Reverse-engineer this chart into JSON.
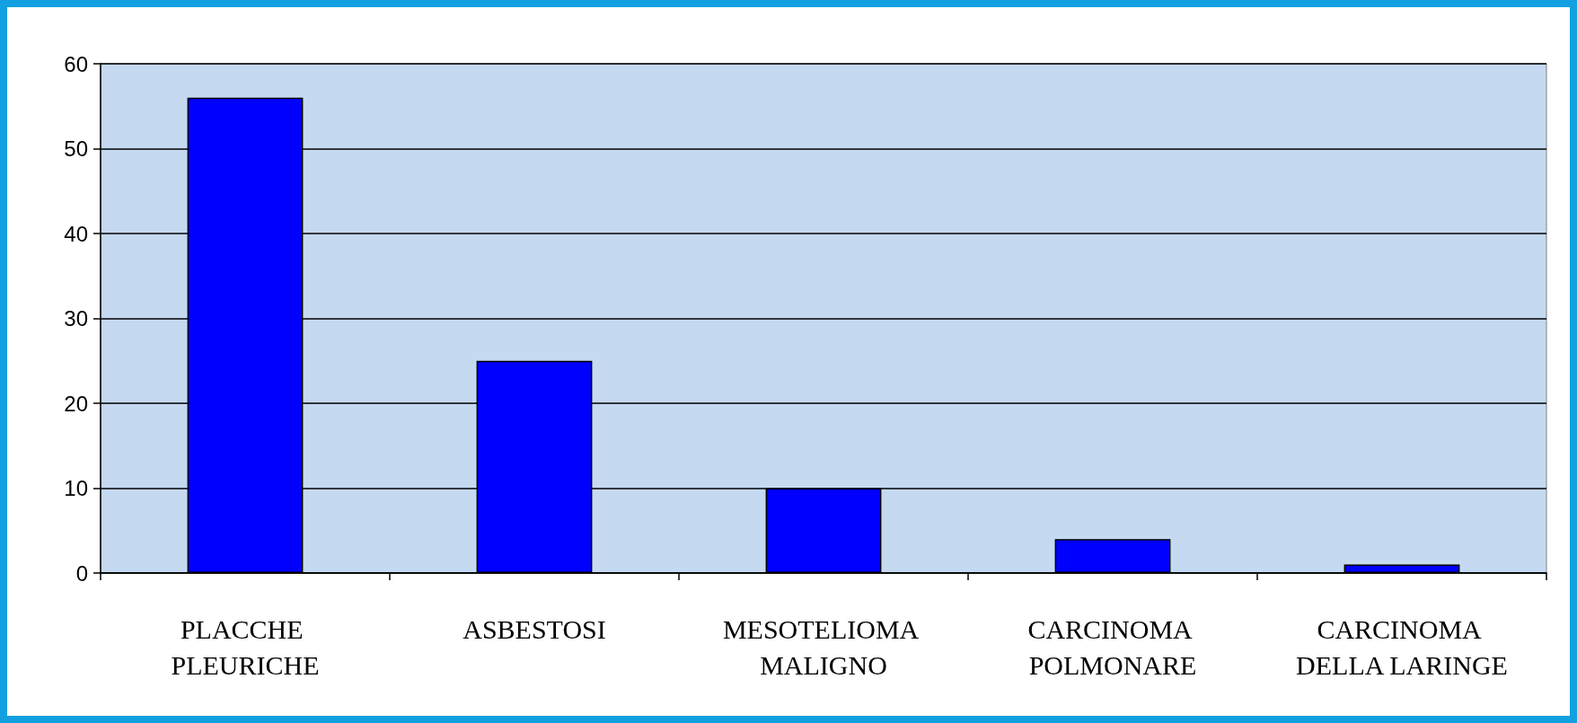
{
  "chart_data": {
    "type": "bar",
    "categories": [
      "PLACCHE PLEURICHE",
      "ASBESTOSI",
      "MESOTELIOMA MALIGNO",
      "CARCINOMA POLMONARE",
      "CARCINOMA DELLA LARINGE"
    ],
    "values": [
      56,
      25,
      10,
      4,
      1
    ],
    "color": "#0000ff",
    "ylim": [
      0,
      60
    ],
    "yticks": [
      0,
      10,
      20,
      30,
      40,
      50,
      60
    ],
    "grid": "y"
  }
}
